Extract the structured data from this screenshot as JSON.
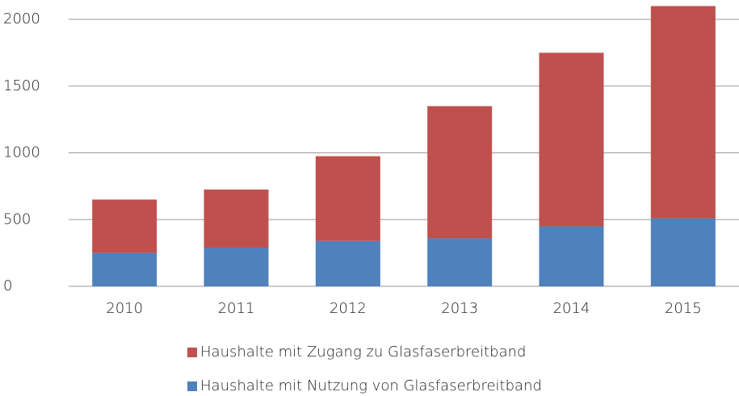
{
  "chart_data": {
    "type": "stacked_bar",
    "categories": [
      "2010",
      "2011",
      "2012",
      "2013",
      "2014",
      "2015"
    ],
    "series": [
      {
        "name": "Haushalte mit Nutzung von Glasfaserbreitband",
        "color": "#4f81bd",
        "values": [
          250,
          290,
          340,
          360,
          450,
          510
        ]
      },
      {
        "name": "Haushalte mit Zugang zu Glasfaserbreitband",
        "color": "#c0504d",
        "values": [
          400,
          435,
          635,
          990,
          1300,
          1590
        ]
      }
    ],
    "ylim": [
      0,
      2100
    ],
    "yticks": [
      0,
      500,
      1000,
      1500,
      2000
    ],
    "grid": true
  }
}
